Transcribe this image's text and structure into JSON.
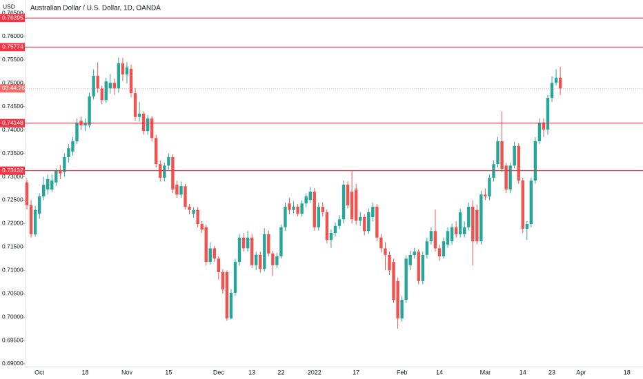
{
  "chart_data": {
    "type": "candlestick",
    "title": "Australian Dollar / U.S. Dollar, 1D, OANDA",
    "currency": "USD",
    "countdown": "03:44:26",
    "up_color": "#26a69a",
    "down_color": "#ef5350",
    "level_color": "#f23645",
    "grid": false,
    "levels": [
      0.76395,
      0.75774,
      0.74148,
      0.73132
    ],
    "ylim": [
      0.68941,
      0.76781
    ],
    "yticks": [
      {
        "value": 0.69,
        "label": "0.69000"
      },
      {
        "value": 0.695,
        "label": "0.69500"
      },
      {
        "value": 0.7,
        "label": "0.70000"
      },
      {
        "value": 0.705,
        "label": "0.70500"
      },
      {
        "value": 0.71,
        "label": "0.71000"
      },
      {
        "value": 0.715,
        "label": "0.71500"
      },
      {
        "value": 0.72,
        "label": "0.72000"
      },
      {
        "value": 0.725,
        "label": "0.72500"
      },
      {
        "value": 0.73,
        "label": "0.73000"
      },
      {
        "value": 0.735,
        "label": "0.73500"
      },
      {
        "value": 0.74,
        "label": "0.74000"
      },
      {
        "value": 0.745,
        "label": "0.74500"
      },
      {
        "value": 0.75,
        "label": "0.75000"
      },
      {
        "value": 0.755,
        "label": "0.75500"
      },
      {
        "value": 0.76,
        "label": "0.76000"
      },
      {
        "value": 0.765,
        "label": "0.76500"
      }
    ],
    "categories": [
      null,
      null,
      null,
      "Oct",
      null,
      null,
      null,
      null,
      null,
      null,
      null,
      null,
      null,
      null,
      "18",
      null,
      null,
      null,
      null,
      null,
      null,
      null,
      null,
      null,
      "Nov",
      null,
      null,
      null,
      null,
      null,
      null,
      null,
      null,
      null,
      "15",
      null,
      null,
      null,
      null,
      null,
      null,
      null,
      null,
      null,
      null,
      null,
      "Dec",
      null,
      null,
      null,
      null,
      null,
      null,
      null,
      "13",
      null,
      null,
      null,
      null,
      null,
      null,
      "22",
      null,
      null,
      null,
      null,
      null,
      null,
      null,
      "2022",
      null,
      null,
      null,
      null,
      null,
      null,
      null,
      null,
      null,
      "17",
      null,
      null,
      null,
      null,
      null,
      null,
      null,
      null,
      null,
      null,
      "Feb",
      null,
      null,
      null,
      null,
      null,
      null,
      null,
      null,
      "14",
      null,
      null,
      null,
      null,
      null,
      null,
      null,
      null,
      null,
      null,
      "Mar",
      null,
      null,
      null,
      null,
      null,
      null,
      null,
      null,
      "14",
      null,
      null,
      null,
      null,
      null,
      null,
      "23",
      null,
      null,
      null,
      null,
      null,
      null,
      "Apr",
      null,
      null,
      null,
      null,
      null,
      null,
      null,
      null,
      null,
      null,
      "18",
      null,
      null,
      null
    ],
    "ohlc": {
      "open": [
        0.7288,
        0.7239,
        0.7177,
        0.7221,
        0.7258,
        0.7273,
        0.7273,
        0.7288,
        0.7313,
        0.731,
        0.7342,
        0.7354,
        0.7376,
        0.742,
        0.741,
        0.741,
        0.7472,
        0.7516,
        0.7489,
        0.7464,
        0.7489,
        0.7501,
        0.7489,
        0.7543,
        0.7519,
        0.7531,
        0.7479,
        0.7428,
        0.7435,
        0.7398,
        0.7425,
        0.7383,
        0.7327,
        0.7298,
        0.7324,
        0.7342,
        0.7283,
        0.7262,
        0.728,
        0.7236,
        0.7221,
        0.7229,
        0.7199,
        0.7192,
        0.7118,
        0.7147,
        0.7125,
        0.7096,
        0.7096,
        0.6997,
        0.7052,
        0.7118,
        0.717,
        0.7147,
        0.717,
        0.7111,
        0.7133,
        0.7103,
        0.7177,
        0.7136,
        0.7111,
        0.713,
        0.7192,
        0.7243,
        0.7229,
        0.7236,
        0.7221,
        0.7243,
        0.7251,
        0.7268,
        0.7192,
        0.7236,
        0.7224,
        0.7165,
        0.718,
        0.7195,
        0.7209,
        0.7283,
        0.7268,
        0.7273,
        0.7206,
        0.7214,
        0.7184,
        0.7214,
        0.7236,
        0.717,
        0.7147,
        0.7133,
        0.7118,
        0.7077,
        0.6997,
        0.7037,
        0.7111,
        0.7133,
        0.714,
        0.7077,
        0.7133,
        0.7162,
        0.7184,
        0.7147,
        0.713,
        0.7155,
        0.7162,
        0.7192,
        0.7177,
        0.7177,
        0.7192,
        0.7236,
        0.7229,
        0.7162,
        0.7262,
        0.7258,
        0.7298,
        0.7327,
        0.7376,
        0.7324,
        0.7273,
        0.7324,
        0.7366,
        0.7292,
        0.7189,
        0.7199,
        0.7292,
        0.7376,
        0.7416,
        0.7401,
        0.7469,
        0.7501,
        0.7512,
        null,
        null,
        null,
        null,
        null,
        null,
        null,
        null,
        null,
        null,
        null,
        null,
        null,
        null,
        null,
        null,
        null,
        null,
        null
      ],
      "high": [
        0.7296,
        0.725,
        0.7238,
        0.7265,
        0.73,
        0.7305,
        0.7305,
        0.7318,
        0.7325,
        0.735,
        0.737,
        0.7385,
        0.7425,
        0.7428,
        0.7425,
        0.748,
        0.753,
        0.7545,
        0.7495,
        0.7512,
        0.752,
        0.751,
        0.7555,
        0.7555,
        0.7545,
        0.754,
        0.749,
        0.746,
        0.744,
        0.7432,
        0.743,
        0.739,
        0.7335,
        0.733,
        0.735,
        0.7348,
        0.7292,
        0.729,
        0.7285,
        0.7242,
        0.7235,
        0.7235,
        0.7205,
        0.7198,
        0.716,
        0.7152,
        0.713,
        0.7102,
        0.71,
        0.706,
        0.7125,
        0.7178,
        0.718,
        0.7185,
        0.7178,
        0.714,
        0.714,
        0.719,
        0.7185,
        0.7142,
        0.7138,
        0.7198,
        0.7245,
        0.7255,
        0.7248,
        0.7242,
        0.725,
        0.7265,
        0.7278,
        0.7276,
        0.7245,
        0.7245,
        0.723,
        0.7188,
        0.7202,
        0.7218,
        0.7292,
        0.729,
        0.7312,
        0.7285,
        0.7225,
        0.722,
        0.7232,
        0.7245,
        0.7242,
        0.7178,
        0.716,
        0.714,
        0.7125,
        0.7085,
        0.7045,
        0.7132,
        0.7142,
        0.7148,
        0.7145,
        0.714,
        0.717,
        0.7192,
        0.723,
        0.7155,
        0.717,
        0.7192,
        0.72,
        0.7205,
        0.7232,
        0.7205,
        0.7245,
        0.725,
        0.724,
        0.727,
        0.7275,
        0.7305,
        0.7335,
        0.7385,
        0.744,
        0.733,
        0.733,
        0.7375,
        0.7372,
        0.7298,
        0.7205,
        0.7298,
        0.7385,
        0.7425,
        0.7425,
        0.7475,
        0.7515,
        0.753,
        0.7535,
        null,
        null,
        null,
        null,
        null,
        null,
        null,
        null,
        null,
        null,
        null,
        null,
        null,
        null,
        null,
        null,
        null,
        null,
        null
      ],
      "low": [
        0.723,
        0.717,
        0.7172,
        0.721,
        0.725,
        0.7262,
        0.7268,
        0.728,
        0.7295,
        0.73,
        0.733,
        0.7345,
        0.737,
        0.74,
        0.7398,
        0.7405,
        0.7465,
        0.748,
        0.7455,
        0.7458,
        0.7478,
        0.7475,
        0.748,
        0.7505,
        0.75,
        0.747,
        0.742,
        0.7418,
        0.739,
        0.739,
        0.7375,
        0.732,
        0.729,
        0.729,
        0.7315,
        0.7265,
        0.7255,
        0.7255,
        0.723,
        0.722,
        0.7212,
        0.7192,
        0.718,
        0.711,
        0.7112,
        0.7118,
        0.708,
        0.705,
        0.6992,
        0.6995,
        0.7045,
        0.711,
        0.714,
        0.714,
        0.7105,
        0.71,
        0.7095,
        0.7098,
        0.713,
        0.7088,
        0.7105,
        0.7125,
        0.7185,
        0.722,
        0.7222,
        0.7215,
        0.7215,
        0.7235,
        0.7245,
        0.7185,
        0.7185,
        0.7215,
        0.7158,
        0.7148,
        0.7172,
        0.7188,
        0.72,
        0.7232,
        0.72,
        0.7198,
        0.7195,
        0.7175,
        0.7178,
        0.7205,
        0.7162,
        0.7138,
        0.71,
        0.709,
        0.703,
        0.6975,
        0.699,
        0.703,
        0.71,
        0.7125,
        0.707,
        0.707,
        0.7125,
        0.7155,
        0.714,
        0.712,
        0.7125,
        0.7148,
        0.7155,
        0.717,
        0.717,
        0.717,
        0.7185,
        0.711,
        0.7155,
        0.7155,
        0.725,
        0.725,
        0.729,
        0.732,
        0.731,
        0.7265,
        0.7265,
        0.7318,
        0.7285,
        0.718,
        0.7165,
        0.7192,
        0.7285,
        0.737,
        0.7385,
        0.739,
        0.746,
        0.7495,
        0.7475,
        null,
        null,
        null,
        null,
        null,
        null,
        null,
        null,
        null,
        null,
        null,
        null,
        null,
        null,
        null,
        null,
        null,
        null,
        null
      ],
      "close": [
        0.7239,
        0.7177,
        0.7229,
        0.7258,
        0.7283,
        0.7295,
        0.7292,
        0.7313,
        0.7307,
        0.7342,
        0.7361,
        0.7376,
        0.7416,
        0.741,
        0.7416,
        0.7472,
        0.7516,
        0.7489,
        0.7464,
        0.7504,
        0.7501,
        0.7489,
        0.7543,
        0.7519,
        0.7534,
        0.7479,
        0.7428,
        0.7435,
        0.7398,
        0.7425,
        0.7383,
        0.7327,
        0.7298,
        0.7324,
        0.7342,
        0.7273,
        0.7262,
        0.728,
        0.7236,
        0.7229,
        0.7229,
        0.7199,
        0.7187,
        0.7118,
        0.7147,
        0.7125,
        0.7096,
        0.7059,
        0.6997,
        0.7052,
        0.7118,
        0.717,
        0.7147,
        0.717,
        0.7111,
        0.7133,
        0.7103,
        0.7177,
        0.7136,
        0.7111,
        0.713,
        0.7192,
        0.7236,
        0.7229,
        0.7236,
        0.7221,
        0.7243,
        0.7258,
        0.7268,
        0.7192,
        0.7236,
        0.7224,
        0.7165,
        0.718,
        0.7195,
        0.7209,
        0.7283,
        0.7239,
        0.7209,
        0.7206,
        0.7214,
        0.7184,
        0.7224,
        0.7236,
        0.717,
        0.7147,
        0.7133,
        0.71,
        0.7037,
        0.6997,
        0.7037,
        0.7125,
        0.7133,
        0.714,
        0.7077,
        0.7133,
        0.7162,
        0.7184,
        0.7147,
        0.713,
        0.7162,
        0.7184,
        0.7192,
        0.7177,
        0.7224,
        0.7192,
        0.7236,
        0.7162,
        0.7162,
        0.7262,
        0.7258,
        0.7298,
        0.7327,
        0.7376,
        0.7317,
        0.7273,
        0.7324,
        0.7366,
        0.7292,
        0.7189,
        0.7199,
        0.7292,
        0.7376,
        0.7416,
        0.7401,
        0.7469,
        0.7501,
        0.7512,
        0.7489,
        null,
        null,
        null,
        null,
        null,
        null,
        null,
        null,
        null,
        null,
        null,
        null,
        null,
        null,
        null,
        null,
        null,
        null,
        null
      ]
    }
  }
}
